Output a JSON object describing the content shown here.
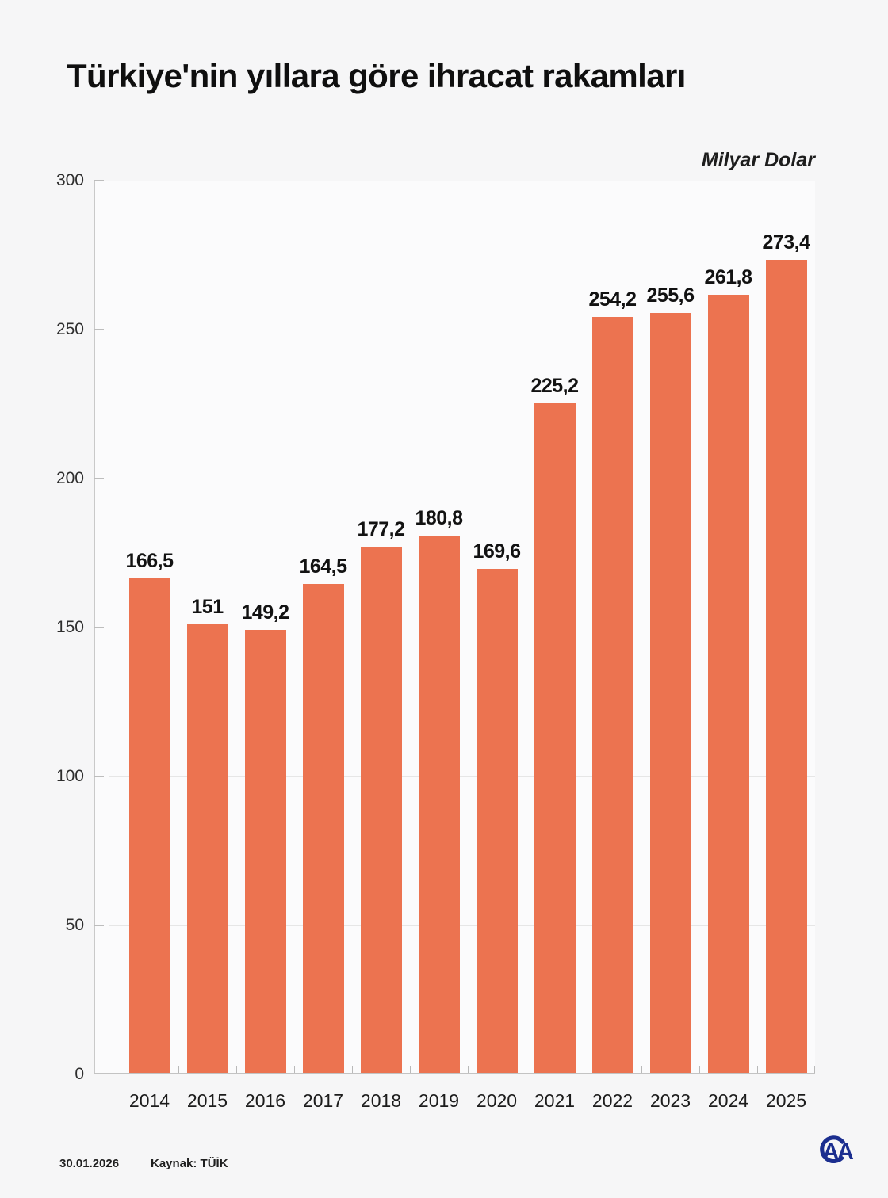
{
  "chart_data": {
    "type": "bar",
    "title": "Türkiye'nin yıllara göre ihracat rakamları",
    "unit_label": "Milyar Dolar",
    "categories": [
      "2014",
      "2015",
      "2016",
      "2017",
      "2018",
      "2019",
      "2020",
      "2021",
      "2022",
      "2023",
      "2024",
      "2025"
    ],
    "values": [
      166.5,
      151,
      149.2,
      164.5,
      177.2,
      180.8,
      169.6,
      225.2,
      254.2,
      255.6,
      261.8,
      273.4
    ],
    "value_labels": [
      "166,5",
      "151",
      "149,2",
      "164,5",
      "177,2",
      "180,8",
      "169,6",
      "225,2",
      "254,2",
      "255,6",
      "261,8",
      "273,4"
    ],
    "xlabel": "",
    "ylabel": "",
    "y_ticks": [
      0,
      50,
      100,
      150,
      200,
      250,
      300
    ],
    "y_tick_labels": [
      "0",
      "50",
      "100",
      "150",
      "200",
      "250",
      "300"
    ],
    "ylim": [
      0,
      300
    ],
    "grid": true,
    "legend": "none",
    "bar_color": "#ec7350"
  },
  "footer": {
    "date": "30.01.2026",
    "source": "Kaynak: TÜİK",
    "logo": "aa-logo",
    "logo_color": "#1b2e8f"
  }
}
